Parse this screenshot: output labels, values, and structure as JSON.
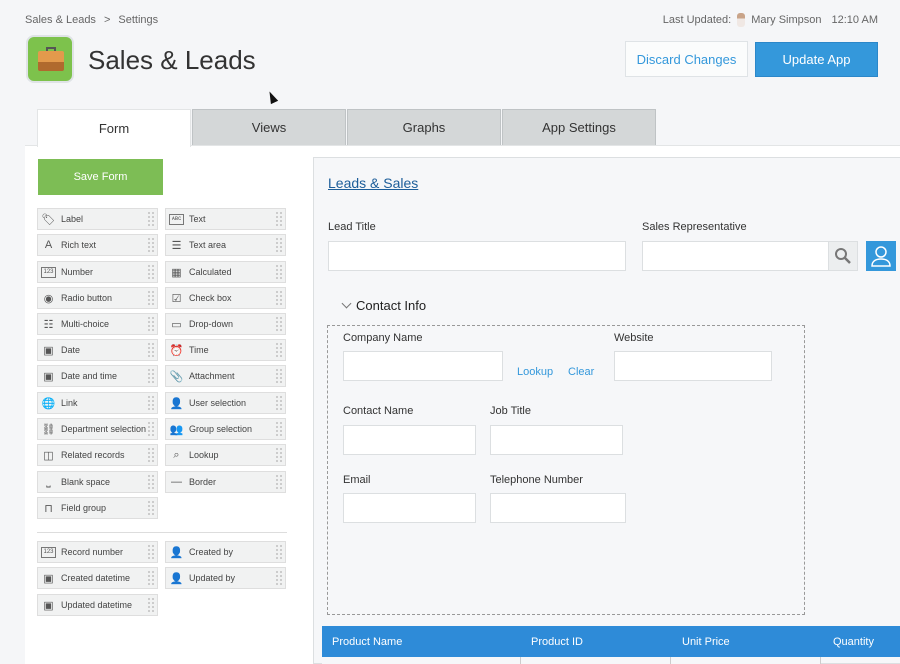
{
  "breadcrumb": [
    "Sales & Leads",
    ">",
    "Settings"
  ],
  "last_updated": {
    "label": "Last Updated:",
    "user": "Mary Simpson",
    "time": "12:10 AM"
  },
  "app": {
    "title": "Sales & Leads",
    "icon": "briefcase-icon"
  },
  "actions": {
    "discard": "Discard Changes",
    "update": "Update App"
  },
  "tabs": [
    {
      "label": "Form",
      "active": true
    },
    {
      "label": "Views"
    },
    {
      "label": "Graphs"
    },
    {
      "label": "App Settings"
    }
  ],
  "palette": {
    "save_label": "Save Form",
    "items": [
      {
        "label": "Label",
        "icon": "tag-icon"
      },
      {
        "label": "Text",
        "icon": "abc-icon"
      },
      {
        "label": "Rich text",
        "icon": "rich-text-icon"
      },
      {
        "label": "Text area",
        "icon": "text-area-icon"
      },
      {
        "label": "Number",
        "icon": "number-icon"
      },
      {
        "label": "Calculated",
        "icon": "calculator-icon"
      },
      {
        "label": "Radio button",
        "icon": "radio-icon"
      },
      {
        "label": "Check box",
        "icon": "checkbox-icon"
      },
      {
        "label": "Multi-choice",
        "icon": "list-icon"
      },
      {
        "label": "Drop-down",
        "icon": "dropdown-icon"
      },
      {
        "label": "Date",
        "icon": "calendar-icon"
      },
      {
        "label": "Time",
        "icon": "clock-icon"
      },
      {
        "label": "Date and time",
        "icon": "calendar-icon"
      },
      {
        "label": "Attachment",
        "icon": "paperclip-icon"
      },
      {
        "label": "Link",
        "icon": "globe-icon"
      },
      {
        "label": "User selection",
        "icon": "user-icon"
      },
      {
        "label": "Department selection",
        "icon": "org-chart-icon"
      },
      {
        "label": "Group selection",
        "icon": "group-icon"
      },
      {
        "label": "Related records",
        "icon": "related-records-icon"
      },
      {
        "label": "Lookup",
        "icon": "lookup-icon"
      },
      {
        "label": "Blank space",
        "icon": "blank-space-icon"
      },
      {
        "label": "Border",
        "icon": "border-line-icon"
      },
      {
        "label": "Field group",
        "icon": "field-group-icon"
      }
    ],
    "system_items": [
      {
        "label": "Record number",
        "icon": "number-icon"
      },
      {
        "label": "Created by",
        "icon": "user-icon"
      },
      {
        "label": "Created datetime",
        "icon": "calendar-icon"
      },
      {
        "label": "Updated by",
        "icon": "user-icon"
      },
      {
        "label": "Updated datetime",
        "icon": "calendar-icon"
      }
    ]
  },
  "form": {
    "title": "Leads & Sales",
    "lead_title": "Lead Title",
    "sales_rep": "Sales Representative",
    "section": "Contact Info",
    "company_name": "Company Name",
    "lookup": "Lookup",
    "clear": "Clear",
    "website": "Website",
    "contact_name": "Contact Name",
    "job_title": "Job Title",
    "email": "Email",
    "telephone": "Telephone Number",
    "table_columns": [
      "Product Name",
      "Product ID",
      "Unit Price",
      "Quantity"
    ]
  },
  "colors": {
    "accent": "#3498db",
    "save": "#7dbd55",
    "table_header": "#2e8bd8"
  }
}
